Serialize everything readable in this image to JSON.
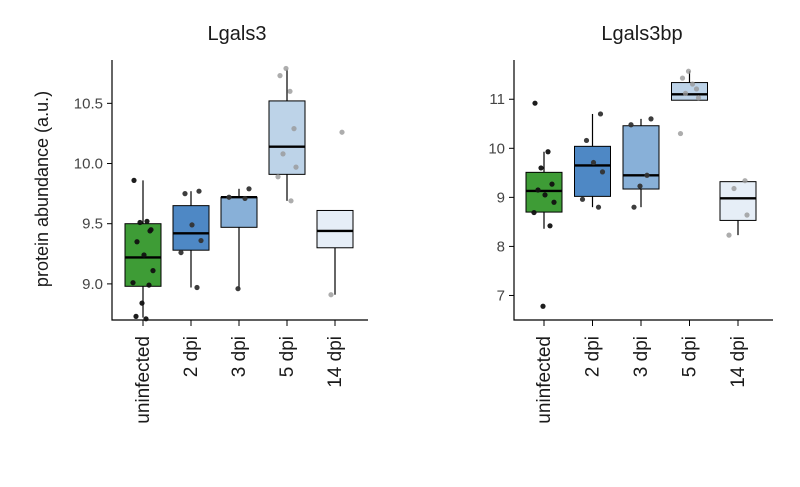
{
  "ylabel": "protein abundance (a.u.)",
  "chart_data": [
    {
      "type": "boxplot",
      "title": "Lgals3",
      "ylabel": "protein abundance (a.u.)",
      "ylim": [
        8.7,
        10.86
      ],
      "yticks": [
        9.0,
        9.5,
        10.0,
        10.5
      ],
      "ytick_labels": [
        "9.0",
        "9.5",
        "10.0",
        "10.5"
      ],
      "categories": [
        "uninfected",
        "2 dpi",
        "3 dpi",
        "5 dpi",
        "14 dpi"
      ],
      "colors": [
        "#3e9c36",
        "#4e88c5",
        "#88b0d8",
        "#bdd3e8",
        "#e6eef7"
      ],
      "boxes": [
        {
          "q1": 8.98,
          "median": 9.22,
          "q3": 9.5,
          "whisker_low": 8.72,
          "whisker_high": 9.86
        },
        {
          "q1": 9.28,
          "median": 9.42,
          "q3": 9.65,
          "whisker_low": 8.97,
          "whisker_high": 9.77
        },
        {
          "q1": 9.47,
          "median": 9.72,
          "q3": 9.72,
          "whisker_low": 8.96,
          "whisker_high": 9.79
        },
        {
          "q1": 9.91,
          "median": 10.14,
          "q3": 10.52,
          "whisker_low": 9.69,
          "whisker_high": 10.78
        },
        {
          "q1": 9.3,
          "median": 9.44,
          "q3": 9.61,
          "whisker_low": 8.91,
          "whisker_high": 9.61
        }
      ],
      "points": [
        [
          9.86,
          9.52,
          9.51,
          9.45,
          9.35,
          9.24,
          9.11,
          9.01,
          8.99,
          8.84,
          8.73,
          8.71,
          9.44
        ],
        [
          9.77,
          9.75,
          9.49,
          9.36,
          9.26,
          8.97
        ],
        [
          9.79,
          9.72,
          9.71,
          8.96
        ],
        [
          10.79,
          10.73,
          10.6,
          10.29,
          10.08,
          9.97,
          9.89,
          9.69
        ],
        [
          10.26,
          8.91
        ]
      ]
    },
    {
      "type": "boxplot",
      "title": "Lgals3bp",
      "ylabel": "",
      "ylim": [
        6.5,
        11.8
      ],
      "yticks": [
        7,
        8,
        9,
        10,
        11
      ],
      "ytick_labels": [
        "7",
        "8",
        "9",
        "10",
        "11"
      ],
      "categories": [
        "uninfected",
        "2 dpi",
        "3 dpi",
        "5 dpi",
        "14 dpi"
      ],
      "colors": [
        "#3e9c36",
        "#4e88c5",
        "#88b0d8",
        "#bdd3e8",
        "#e6eef7"
      ],
      "boxes": [
        {
          "q1": 8.7,
          "median": 9.13,
          "q3": 9.51,
          "whisker_low": 8.36,
          "whisker_high": 9.93
        },
        {
          "q1": 9.02,
          "median": 9.65,
          "q3": 10.04,
          "whisker_low": 8.8,
          "whisker_high": 10.7
        },
        {
          "q1": 9.17,
          "median": 9.45,
          "q3": 10.46,
          "whisker_low": 8.8,
          "whisker_high": 10.6
        },
        {
          "q1": 10.98,
          "median": 11.1,
          "q3": 11.34,
          "whisker_low": 10.98,
          "whisker_high": 11.57
        },
        {
          "q1": 8.53,
          "median": 8.98,
          "q3": 9.32,
          "whisker_low": 8.23,
          "whisker_high": 9.32
        }
      ],
      "points": [
        [
          10.92,
          9.93,
          9.6,
          9.27,
          9.15,
          9.05,
          8.9,
          8.69,
          8.42,
          6.78
        ],
        [
          10.7,
          10.16,
          9.71,
          9.52,
          8.96,
          8.8
        ],
        [
          10.6,
          10.48,
          9.45,
          9.23,
          8.8
        ],
        [
          11.57,
          11.43,
          11.31,
          11.21,
          11.12,
          11.03,
          10.3
        ],
        [
          9.34,
          9.18,
          8.64,
          8.23
        ]
      ]
    }
  ]
}
